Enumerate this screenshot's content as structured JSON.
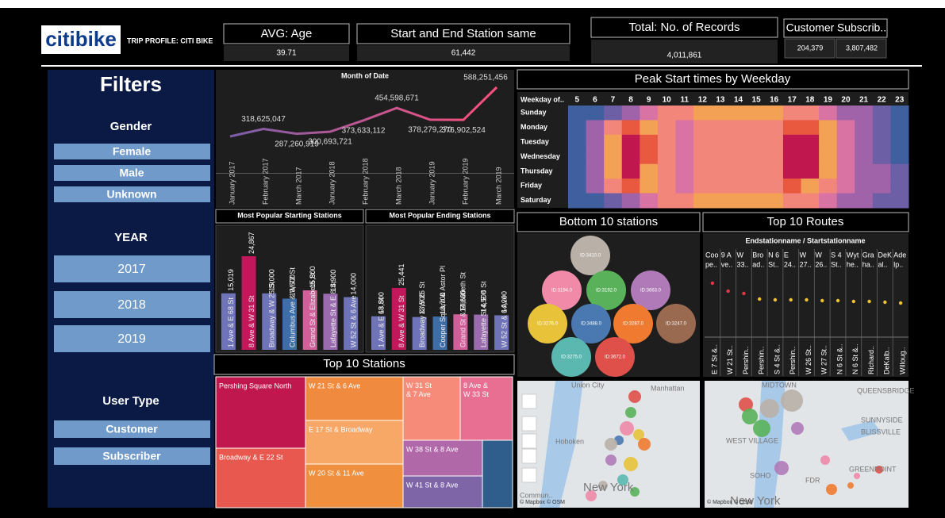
{
  "header": {
    "logo": "citibike",
    "subtitle": "TRIP PROFILE: CITI BIKE"
  },
  "kpis": [
    {
      "title": "AVG: Age",
      "value": "39.71"
    },
    {
      "title": "Start and End Station same",
      "value": "61,442"
    },
    {
      "title": "Total: No. of Records",
      "value": "4,011,861"
    }
  ],
  "kpi_split": [
    {
      "title": "Customer",
      "value": "204,379"
    },
    {
      "title": "Subscrib..",
      "value": "3,807,482"
    }
  ],
  "filters": {
    "title": "Filters",
    "groups": [
      {
        "title": "Gender",
        "options": [
          "Female",
          "Male",
          "Unknown"
        ]
      },
      {
        "title": "YEAR",
        "options": [
          "2017",
          "2018",
          "2019"
        ]
      },
      {
        "title": "User Type",
        "options": [
          "Customer",
          "Subscriber"
        ]
      }
    ]
  },
  "chart_data": [
    {
      "type": "line",
      "title": "Month of Date",
      "categories": [
        "January 2017",
        "February 2017",
        "March 2017",
        "January 2018",
        "February 2018",
        "March 2018",
        "January 2019",
        "February 2019",
        "March 2019"
      ],
      "values": [
        270000000,
        318625047,
        287260919,
        300693721,
        373633112,
        454598671,
        378279270,
        376902524,
        588251456
      ],
      "value_labels": [
        null,
        "318,625,047",
        "287,260,919",
        "300,693,721",
        "373,633,112",
        "454,598,671",
        "378,279,270",
        "376,902,524",
        "588,251,456"
      ],
      "colors": [
        "#7b5ea7",
        "#ff4f7b"
      ]
    },
    {
      "type": "bar",
      "title": "Most Popular Starting Stations",
      "categories": [
        "1 Ave & E 68 St",
        "8 Ave & W 31 St",
        "Broadway & W 25 St",
        "Columbus Ave & W 72 St",
        "Grand St & Elizabeth St",
        "Lafayette St & E 8 St",
        "W 52 St & 6 Ave"
      ],
      "values": [
        15019,
        24867,
        15000,
        13600,
        15800,
        14900,
        14000
      ],
      "value_labels": [
        "15,019",
        "24,867",
        "15,000",
        "13,600",
        "15,800",
        "14,900",
        "14,000"
      ],
      "colors": [
        "#6f74b8",
        "#c2185b",
        "#6f74b8",
        "#3d6ea8",
        "#d05f9a",
        "#9b6bb0",
        "#6f74b8"
      ]
    },
    {
      "type": "bar",
      "title": "Most Popular Ending Stations",
      "categories": [
        "1 Ave & E 68 St",
        "8 Ave & W 31 St",
        "Broadway & W 25 St",
        "Cooper Square & Astor Pl",
        "Grand St & Elizabeth St",
        "Lafayette St & E 8 St",
        "W 52 St & 6 Ave"
      ],
      "values": [
        13800,
        25441,
        13500,
        13700,
        14600,
        14500,
        14200
      ],
      "value_labels": [
        "13,800",
        "25,441",
        "13,500",
        "13,700",
        "14,600",
        "14,500",
        "14,200"
      ],
      "colors": [
        "#6f74b8",
        "#c2185b",
        "#6f74b8",
        "#3d6ea8",
        "#d05f9a",
        "#9b6bb0",
        "#6f74b8"
      ]
    },
    {
      "type": "heatmap",
      "title": "Peak Start times by Weekday",
      "x_label": "Weekday of..",
      "x": [
        5,
        6,
        7,
        8,
        9,
        10,
        11,
        12,
        13,
        14,
        15,
        16,
        17,
        18,
        19,
        20,
        21,
        22,
        23
      ],
      "categories": [
        "Sunday",
        "Monday",
        "Tuesday",
        "Wednesday",
        "Thursday",
        "Friday",
        "Saturday"
      ],
      "values": [
        [
          5,
          8,
          15,
          25,
          40,
          55,
          62,
          65,
          68,
          68,
          66,
          65,
          60,
          55,
          45,
          35,
          25,
          15,
          10
        ],
        [
          10,
          30,
          60,
          85,
          70,
          50,
          45,
          50,
          50,
          50,
          52,
          60,
          80,
          85,
          65,
          45,
          30,
          20,
          12
        ],
        [
          10,
          32,
          70,
          95,
          75,
          50,
          45,
          50,
          50,
          50,
          52,
          62,
          92,
          90,
          68,
          45,
          32,
          22,
          12
        ],
        [
          10,
          32,
          70,
          95,
          75,
          50,
          45,
          50,
          50,
          50,
          52,
          62,
          92,
          92,
          68,
          47,
          33,
          22,
          12
        ],
        [
          10,
          32,
          70,
          95,
          72,
          50,
          45,
          50,
          50,
          50,
          52,
          62,
          90,
          88,
          68,
          48,
          35,
          25,
          15
        ],
        [
          8,
          28,
          62,
          82,
          68,
          52,
          48,
          55,
          55,
          55,
          55,
          60,
          78,
          72,
          58,
          45,
          35,
          28,
          18
        ],
        [
          5,
          8,
          15,
          25,
          40,
          55,
          62,
          66,
          68,
          68,
          66,
          64,
          58,
          52,
          45,
          35,
          28,
          20,
          15
        ]
      ],
      "zlim": [
        0,
        100
      ],
      "colors": [
        "#3f5f9f",
        "#6c5fa6",
        "#a062a8",
        "#d873a3",
        "#f2867a",
        "#f2a155",
        "#e8593f",
        "#c0174e"
      ]
    }
  ],
  "bottom_stations": {
    "title": "Bottom 10 stations",
    "labels": [
      "ID:3410.0",
      "ID:3194.0",
      "ID:3192.0",
      "ID:3663.0",
      "ID:3276.0",
      "ID:3488.0",
      "ID:3287.0",
      "ID:3247.0",
      "ID:3275.0",
      "ID:3672.0"
    ],
    "colors": [
      "#b9b0a8",
      "#f08aa8",
      "#59b25a",
      "#b07ab8",
      "#e8c33a",
      "#4a78b0",
      "#f07a30",
      "#9a6a50",
      "#5bb8b0",
      "#e0504a"
    ]
  },
  "top_routes": {
    "title": "Top 10 Routes",
    "header": "Endstationname / Startstationname",
    "top_labels": [
      [
        "Coo",
        "pe.."
      ],
      [
        "9 A",
        "ve.."
      ],
      [
        "W",
        "33.."
      ],
      [
        "Bro",
        "ad.."
      ],
      [
        "N 6",
        "St.."
      ],
      [
        "E",
        "24.."
      ],
      [
        "W",
        "27.."
      ],
      [
        "W",
        "26.."
      ],
      [
        "S 4",
        "St.."
      ],
      [
        "Wyt",
        "he.."
      ],
      [
        "Gra",
        "ha.."
      ],
      [
        "DeK",
        "al.."
      ],
      [
        "Ade",
        "lp.."
      ]
    ],
    "bottom_labels": [
      "E 7 St &..",
      "W 21 St..",
      "Pershin..",
      "Pershin..",
      "S 4 St &..",
      "Pershin..",
      "W 26 St..",
      "W 27 St..",
      "N 6 St &..",
      "N 6 St &..",
      "Richard..",
      "DeKalb..",
      "Willoug.."
    ],
    "colors": [
      "#e0394a",
      "#e0394a",
      "#e0394a",
      "#f2c230",
      "#f2c230",
      "#f2c230",
      "#f2c230",
      "#f2c230",
      "#f2c230",
      "#f2c230",
      "#f2c230",
      "#f2c230",
      "#f2c230"
    ]
  },
  "treemap": {
    "title": "Top 10 Stations",
    "tiles": [
      {
        "label": "Pershing Square North",
        "color": "#c0174e"
      },
      {
        "label": "Broadway & E 22 St",
        "color": "#e8584f"
      },
      {
        "label": "W 21 St & 6 Ave",
        "color": "#f08a3e"
      },
      {
        "label": "E 17 St & Broadway",
        "color": "#f7a866"
      },
      {
        "label": "W 20 St & 11 Ave",
        "color": "#f0903f"
      },
      {
        "label": "W 31 St & 7 Ave",
        "color": "#f78b7a"
      },
      {
        "label": "8 Ave & W 33 St",
        "color": "#e86f92"
      },
      {
        "label": "W 38 St & 8 Ave",
        "color": "#b168a9"
      },
      {
        "label": "W 41 St & 8 Ave",
        "color": "#7e65a8"
      },
      {
        "label": null,
        "color": "#2f5e8c"
      }
    ]
  },
  "maps": [
    {
      "labels": [
        "Union City",
        "Manhattan",
        "Hoboken",
        "New York",
        "Commun..",
        "© Mapbox © OSM"
      ]
    },
    {
      "labels": [
        "MIDTOWN",
        "QUEENSBRIDGE",
        "SUNNYSIDE",
        "BLISSVILLE",
        "WEST VILLAGE",
        "SOHO",
        "GREENPOINT",
        "New York",
        "© Mapbox © OSM",
        "FDR"
      ]
    }
  ]
}
